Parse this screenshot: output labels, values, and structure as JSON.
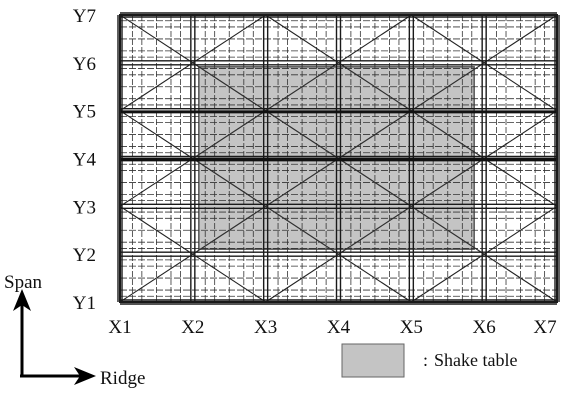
{
  "axes": {
    "x_labels": [
      "X1",
      "X2",
      "X3",
      "X4",
      "X5",
      "X6",
      "X7"
    ],
    "y_labels": [
      "Y1",
      "Y2",
      "Y3",
      "Y4",
      "Y5",
      "Y6",
      "Y7"
    ]
  },
  "direction_labels": {
    "span": "Span",
    "ridge": "Ridge"
  },
  "legend": {
    "separator": ":",
    "label": "Shake table",
    "swatch_color": "#c4c4c4"
  },
  "colors": {
    "frame": "#1a1a1a",
    "fine_grid": "#333333",
    "shake_table": "#c4c4c4"
  }
}
